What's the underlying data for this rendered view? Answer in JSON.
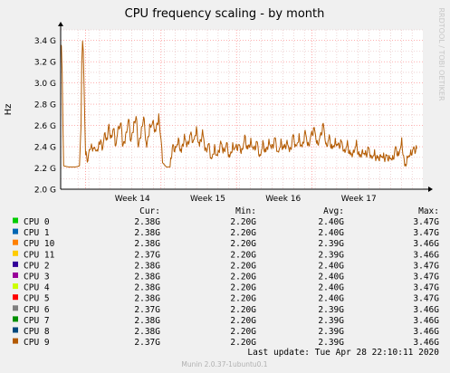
{
  "chart_data": {
    "type": "line",
    "title": "CPU frequency scaling - by month",
    "ylabel": "Hz",
    "watermark": "RRDTOOL / TOBI OETIKER",
    "ylim": [
      2.0,
      3.5
    ],
    "yticks": [
      {
        "value": 2.0,
        "label": "2.0 G"
      },
      {
        "value": 2.2,
        "label": "2.2 G"
      },
      {
        "value": 2.4,
        "label": "2.4 G"
      },
      {
        "value": 2.6,
        "label": "2.6 G"
      },
      {
        "value": 2.8,
        "label": "2.8 G"
      },
      {
        "value": 3.0,
        "label": "3.0 G"
      },
      {
        "value": 3.2,
        "label": "3.2 G"
      },
      {
        "value": 3.4,
        "label": "3.4 G"
      }
    ],
    "xrange": [
      0,
      4.8
    ],
    "xticks": [
      {
        "pos": 0.95,
        "label": "Week 14"
      },
      {
        "pos": 1.95,
        "label": "Week 15"
      },
      {
        "pos": 2.95,
        "label": "Week 16"
      },
      {
        "pos": 3.95,
        "label": "Week 17"
      }
    ],
    "series_profile_ghz": [
      [
        0.0,
        3.36
      ],
      [
        0.01,
        3.33
      ],
      [
        0.02,
        3.1
      ],
      [
        0.03,
        2.6
      ],
      [
        0.04,
        2.22
      ],
      [
        0.1,
        2.21
      ],
      [
        0.2,
        2.21
      ],
      [
        0.25,
        2.22
      ],
      [
        0.27,
        2.6
      ],
      [
        0.28,
        3.2
      ],
      [
        0.29,
        3.37
      ],
      [
        0.3,
        3.3
      ],
      [
        0.31,
        3.0
      ],
      [
        0.32,
        2.6
      ],
      [
        0.33,
        2.32
      ],
      [
        0.36,
        2.28
      ],
      [
        0.38,
        2.35
      ],
      [
        0.4,
        2.38
      ],
      [
        0.44,
        2.4
      ],
      [
        0.46,
        2.35
      ],
      [
        0.5,
        2.38
      ],
      [
        0.53,
        2.48
      ],
      [
        0.55,
        2.35
      ],
      [
        0.58,
        2.5
      ],
      [
        0.62,
        2.48
      ],
      [
        0.64,
        2.6
      ],
      [
        0.66,
        2.45
      ],
      [
        0.7,
        2.58
      ],
      [
        0.73,
        2.4
      ],
      [
        0.76,
        2.55
      ],
      [
        0.8,
        2.63
      ],
      [
        0.82,
        2.4
      ],
      [
        0.86,
        2.48
      ],
      [
        0.9,
        2.66
      ],
      [
        0.93,
        2.45
      ],
      [
        0.97,
        2.6
      ],
      [
        1.0,
        2.68
      ],
      [
        1.03,
        2.4
      ],
      [
        1.07,
        2.55
      ],
      [
        1.1,
        2.67
      ],
      [
        1.14,
        2.4
      ],
      [
        1.18,
        2.58
      ],
      [
        1.22,
        2.62
      ],
      [
        1.26,
        2.55
      ],
      [
        1.3,
        2.68
      ],
      [
        1.33,
        2.45
      ],
      [
        1.35,
        2.25
      ],
      [
        1.4,
        2.21
      ],
      [
        1.45,
        2.21
      ],
      [
        1.48,
        2.4
      ],
      [
        1.52,
        2.38
      ],
      [
        1.56,
        2.45
      ],
      [
        1.6,
        2.35
      ],
      [
        1.64,
        2.5
      ],
      [
        1.68,
        2.4
      ],
      [
        1.72,
        2.52
      ],
      [
        1.76,
        2.45
      ],
      [
        1.8,
        2.55
      ],
      [
        1.84,
        2.4
      ],
      [
        1.88,
        2.55
      ],
      [
        1.92,
        2.35
      ],
      [
        1.96,
        2.42
      ],
      [
        2.0,
        2.28
      ],
      [
        2.04,
        2.38
      ],
      [
        2.08,
        2.3
      ],
      [
        2.12,
        2.45
      ],
      [
        2.16,
        2.35
      ],
      [
        2.2,
        2.42
      ],
      [
        2.24,
        2.3
      ],
      [
        2.28,
        2.4
      ],
      [
        2.32,
        2.38
      ],
      [
        2.36,
        2.42
      ],
      [
        2.4,
        2.35
      ],
      [
        2.44,
        2.48
      ],
      [
        2.48,
        2.38
      ],
      [
        2.52,
        2.45
      ],
      [
        2.56,
        2.36
      ],
      [
        2.6,
        2.45
      ],
      [
        2.64,
        2.3
      ],
      [
        2.68,
        2.42
      ],
      [
        2.72,
        2.35
      ],
      [
        2.76,
        2.45
      ],
      [
        2.8,
        2.38
      ],
      [
        2.84,
        2.48
      ],
      [
        2.88,
        2.34
      ],
      [
        2.92,
        2.43
      ],
      [
        2.96,
        2.38
      ],
      [
        3.0,
        2.45
      ],
      [
        3.04,
        2.35
      ],
      [
        3.08,
        2.5
      ],
      [
        3.12,
        2.4
      ],
      [
        3.16,
        2.48
      ],
      [
        3.2,
        2.38
      ],
      [
        3.24,
        2.55
      ],
      [
        3.28,
        2.4
      ],
      [
        3.32,
        2.5
      ],
      [
        3.36,
        2.58
      ],
      [
        3.4,
        2.42
      ],
      [
        3.44,
        2.48
      ],
      [
        3.48,
        2.62
      ],
      [
        3.52,
        2.4
      ],
      [
        3.56,
        2.48
      ],
      [
        3.6,
        2.38
      ],
      [
        3.64,
        2.45
      ],
      [
        3.68,
        2.4
      ],
      [
        3.72,
        2.45
      ],
      [
        3.76,
        2.35
      ],
      [
        3.8,
        2.42
      ],
      [
        3.84,
        2.32
      ],
      [
        3.88,
        2.35
      ],
      [
        3.92,
        2.42
      ],
      [
        3.96,
        2.3
      ],
      [
        4.0,
        2.36
      ],
      [
        4.04,
        2.32
      ],
      [
        4.08,
        2.38
      ],
      [
        4.12,
        2.3
      ],
      [
        4.16,
        2.33
      ],
      [
        4.2,
        2.28
      ],
      [
        4.24,
        2.32
      ],
      [
        4.28,
        2.3
      ],
      [
        4.32,
        2.3
      ],
      [
        4.36,
        2.3
      ],
      [
        4.4,
        2.28
      ],
      [
        4.44,
        2.38
      ],
      [
        4.48,
        2.32
      ],
      [
        4.52,
        2.45
      ],
      [
        4.56,
        2.22
      ],
      [
        4.6,
        2.3
      ],
      [
        4.64,
        2.34
      ],
      [
        4.68,
        2.37
      ],
      [
        4.72,
        2.38
      ]
    ],
    "legend_headers": {
      "cur": "Cur:",
      "min": "Min:",
      "avg": "Avg:",
      "max": "Max:"
    },
    "series": [
      {
        "name": "CPU 0",
        "color": "#00cc00",
        "cur": "2.38G",
        "min": "2.20G",
        "avg": "2.40G",
        "max": "3.47G"
      },
      {
        "name": "CPU 1",
        "color": "#0066b3",
        "cur": "2.38G",
        "min": "2.20G",
        "avg": "2.40G",
        "max": "3.47G"
      },
      {
        "name": "CPU 10",
        "color": "#ff8000",
        "cur": "2.38G",
        "min": "2.20G",
        "avg": "2.39G",
        "max": "3.46G"
      },
      {
        "name": "CPU 11",
        "color": "#ffcc00",
        "cur": "2.37G",
        "min": "2.20G",
        "avg": "2.39G",
        "max": "3.46G"
      },
      {
        "name": "CPU 2",
        "color": "#330099",
        "cur": "2.38G",
        "min": "2.20G",
        "avg": "2.40G",
        "max": "3.47G"
      },
      {
        "name": "CPU 3",
        "color": "#990099",
        "cur": "2.38G",
        "min": "2.20G",
        "avg": "2.40G",
        "max": "3.47G"
      },
      {
        "name": "CPU 4",
        "color": "#ccff00",
        "cur": "2.38G",
        "min": "2.20G",
        "avg": "2.40G",
        "max": "3.47G"
      },
      {
        "name": "CPU 5",
        "color": "#ff0000",
        "cur": "2.38G",
        "min": "2.20G",
        "avg": "2.40G",
        "max": "3.47G"
      },
      {
        "name": "CPU 6",
        "color": "#808080",
        "cur": "2.37G",
        "min": "2.20G",
        "avg": "2.39G",
        "max": "3.46G"
      },
      {
        "name": "CPU 7",
        "color": "#008f00",
        "cur": "2.38G",
        "min": "2.20G",
        "avg": "2.39G",
        "max": "3.46G"
      },
      {
        "name": "CPU 8",
        "color": "#00487d",
        "cur": "2.38G",
        "min": "2.20G",
        "avg": "2.39G",
        "max": "3.46G"
      },
      {
        "name": "CPU 9",
        "color": "#b35a00",
        "cur": "2.37G",
        "min": "2.20G",
        "avg": "2.39G",
        "max": "3.46G"
      }
    ],
    "last_update": "Last update: Tue Apr 28 22:10:11 2020",
    "footer": "Munin 2.0.37-1ubuntu0.1",
    "colors": {
      "background": "#f0f0f0",
      "plot_bg": "#ffffff",
      "minor_grid": "#e4b8b8",
      "major_grid": "#ff8080",
      "axis": "#000000",
      "line": "#b35a00"
    },
    "grid": true
  }
}
